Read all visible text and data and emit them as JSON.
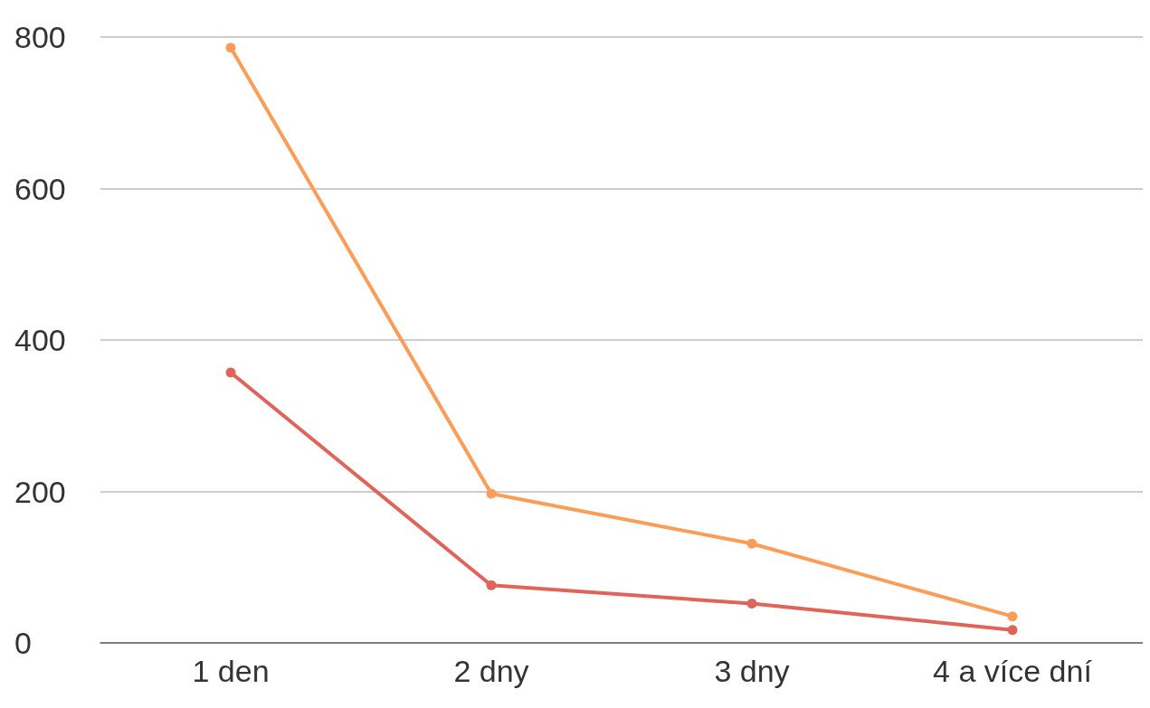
{
  "chart_data": {
    "type": "line",
    "categories": [
      "1 den",
      "2 dny",
      "3 dny",
      "4 a více dní"
    ],
    "series": [
      {
        "color": "#f99d58",
        "values": [
          786,
          197,
          131,
          35
        ]
      },
      {
        "color": "#df6459",
        "values": [
          357,
          76,
          52,
          17
        ]
      }
    ],
    "ylim": [
      0,
      800
    ],
    "yticks": [
      0,
      200,
      400,
      600,
      800
    ],
    "grid": "y",
    "marker": "circle",
    "line_style": "solid"
  }
}
